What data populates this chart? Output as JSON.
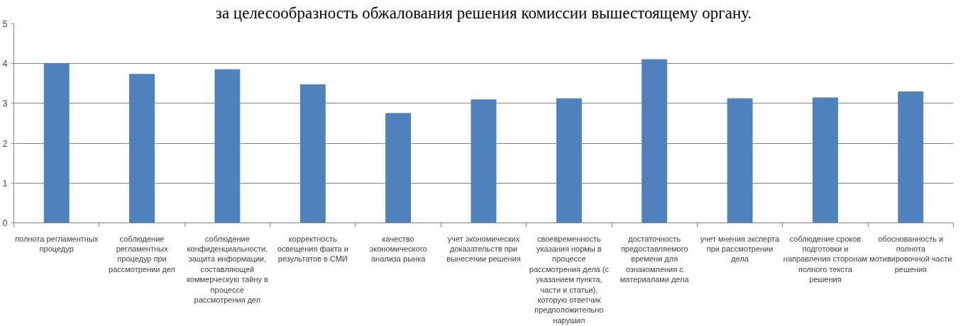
{
  "chart_data": {
    "type": "bar",
    "title": "за целесообразность обжалования решения комиссии вышестоящему органу.",
    "categories": [
      "полнота регламентных процедур",
      "соблюдение регламентных процедур при рассмотрении дел",
      "соблюдение конфиденциальности, защита информации, составляющей коммерческую тайну в процессе рассмотрения дел",
      "корректность освещения факта и результатов в СМИ",
      "качество экономического анализа рынка",
      "учет экономических доказательств при вынесении решения",
      "своевременность указания нормы в процессе рассмотрения дела (с указанием пункта, части и статьи), которую ответчик предположительно нарушил",
      "достаточность предоставляемого времени для ознакомления с материалами дела",
      "учет мнения эксперта при рассмотрении дела",
      "соблюдение сроков подготовки и направления сторонам полного текста решения",
      "обоснованность и полнота мотивировочной части решения"
    ],
    "values": [
      4.0,
      3.73,
      3.85,
      3.47,
      2.75,
      3.09,
      3.12,
      4.1,
      3.12,
      3.14,
      3.29
    ],
    "color": "#4f81bd",
    "ylim": [
      0,
      5
    ],
    "yticks": [
      0,
      1,
      2,
      3,
      4,
      5
    ],
    "grid": "y"
  }
}
